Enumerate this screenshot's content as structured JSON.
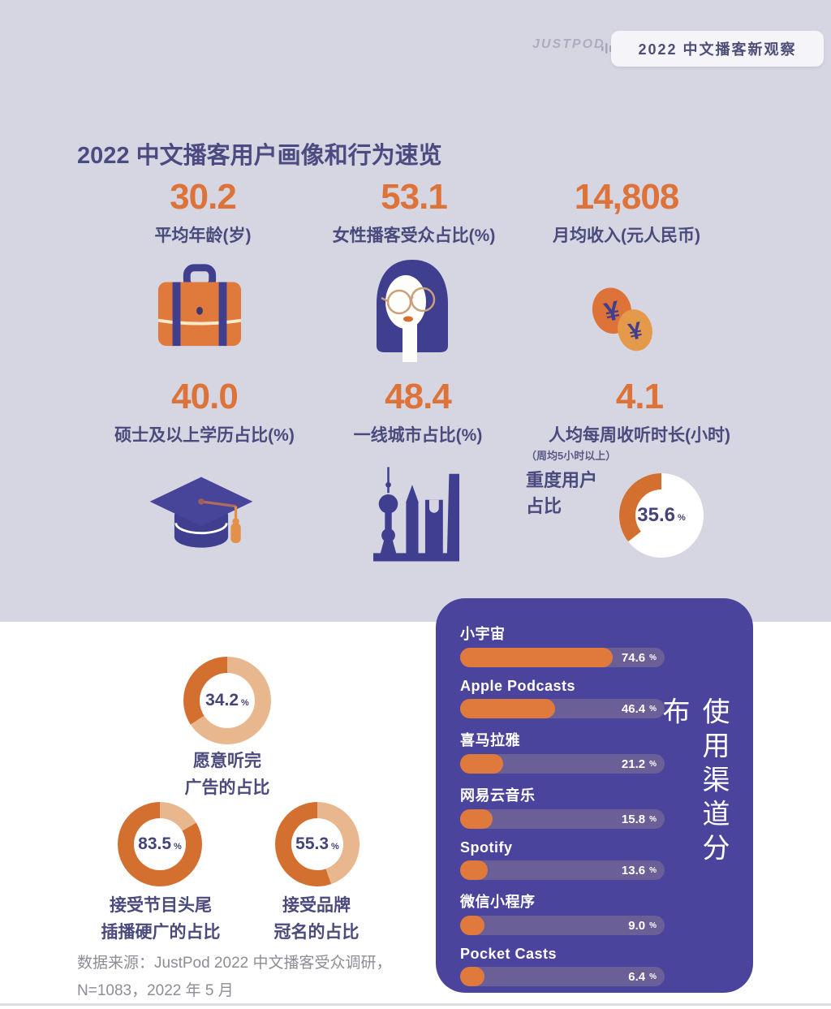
{
  "header": {
    "logo": "JUSTPOD",
    "badge": "2022 中文播客新观察"
  },
  "title": "2022 中文播客用户画像和行为速览",
  "stats": [
    {
      "value": "30.2",
      "label": "平均年龄(岁)",
      "icon": "briefcase-icon"
    },
    {
      "value": "53.1",
      "label": "女性播客受众占比(%)",
      "icon": "female-listener-icon"
    },
    {
      "value": "14,808",
      "label": "月均收入(元人民币)",
      "icon": "yen-coins-icon"
    },
    {
      "value": "40.0",
      "label": "硕士及以上学历占比(%)",
      "icon": "graduation-cap-icon"
    },
    {
      "value": "48.4",
      "label": "一线城市占比(%)",
      "icon": "city-skyline-icon"
    },
    {
      "value": "4.1",
      "label": "人均每周收听时长(小时)",
      "icon": "heavy-user-donut"
    }
  ],
  "heavy_user": {
    "note": "（周均5小时以上）",
    "label_line1": "重度用户",
    "label_line2": "占比",
    "value": 35.6,
    "value_text": "35.6",
    "percent": "%"
  },
  "ad_donuts": [
    {
      "value": 34.2,
      "value_text": "34.2",
      "percent": "%",
      "label_line1": "愿意听完",
      "label_line2": "广告的占比"
    },
    {
      "value": 83.5,
      "value_text": "83.5",
      "percent": "%",
      "label_line1": "接受节目头尾",
      "label_line2": "插播硬广的占比"
    },
    {
      "value": 55.3,
      "value_text": "55.3",
      "percent": "%",
      "label_line1": "接受品牌",
      "label_line2": "冠名的占比"
    }
  ],
  "channels": {
    "title": "使用渠道分布",
    "percent": "%",
    "items": [
      {
        "name": "小宇宙",
        "value": 74.6,
        "value_text": "74.6"
      },
      {
        "name": "Apple Podcasts",
        "value": 46.4,
        "value_text": "46.4"
      },
      {
        "name": "喜马拉雅",
        "value": 21.2,
        "value_text": "21.2"
      },
      {
        "name": "网易云音乐",
        "value": 15.8,
        "value_text": "15.8"
      },
      {
        "name": "Spotify",
        "value": 13.6,
        "value_text": "13.6"
      },
      {
        "name": "微信小程序",
        "value": 9.0,
        "value_text": "9.0"
      },
      {
        "name": "Pocket Casts",
        "value": 6.4,
        "value_text": "6.4"
      }
    ]
  },
  "footer": {
    "line1": "数据来源：JustPod 2022 中文播客受众调研，",
    "line2": "N=1083，2022 年 5 月"
  },
  "colors": {
    "accent_orange": "#dd7338",
    "bar_orange": "#e0793c",
    "donut_fill": "#d4702f",
    "donut_rest": "#e8b78d",
    "donut_rest_white": "#ffffff",
    "panel_purple": "#4a449c",
    "track_purple": "#6b5f97",
    "lavender_bg": "#d6d6e3",
    "navy_text": "#4a4a7d"
  },
  "chart_data": [
    {
      "type": "bar",
      "title": "使用渠道分布",
      "orientation": "horizontal",
      "unit": "%",
      "categories": [
        "小宇宙",
        "Apple Podcasts",
        "喜马拉雅",
        "网易云音乐",
        "Spotify",
        "微信小程序",
        "Pocket Casts"
      ],
      "values": [
        74.6,
        46.4,
        21.2,
        15.8,
        13.6,
        9.0,
        6.4
      ],
      "xlim": [
        0,
        100
      ],
      "bar_color": "#e0793c",
      "background": "#4a449c",
      "grid": false,
      "legend": false
    },
    {
      "type": "pie",
      "subtype": "donut",
      "title": "重度用户占比（周均5小时以上）",
      "label": "重度用户占比",
      "value": 35.6,
      "remainder": 64.4,
      "unit": "%"
    },
    {
      "type": "pie",
      "subtype": "donut",
      "title": "愿意听完广告的占比",
      "label": "愿意听完广告的占比",
      "value": 34.2,
      "remainder": 65.8,
      "unit": "%"
    },
    {
      "type": "pie",
      "subtype": "donut",
      "title": "接受节目头尾插播硬广的占比",
      "label": "接受节目头尾插播硬广的占比",
      "value": 83.5,
      "remainder": 16.5,
      "unit": "%"
    },
    {
      "type": "pie",
      "subtype": "donut",
      "title": "接受品牌冠名的占比",
      "label": "接受品牌冠名的占比",
      "value": 55.3,
      "remainder": 44.7,
      "unit": "%"
    },
    {
      "type": "table",
      "title": "2022 中文播客用户画像和行为速览",
      "rows": [
        [
          "平均年龄(岁)",
          30.2
        ],
        [
          "女性播客受众占比(%)",
          53.1
        ],
        [
          "月均收入(元人民币)",
          14808
        ],
        [
          "硕士及以上学历占比(%)",
          40.0
        ],
        [
          "一线城市占比(%)",
          48.4
        ],
        [
          "人均每周收听时长(小时)",
          4.1
        ]
      ]
    }
  ]
}
